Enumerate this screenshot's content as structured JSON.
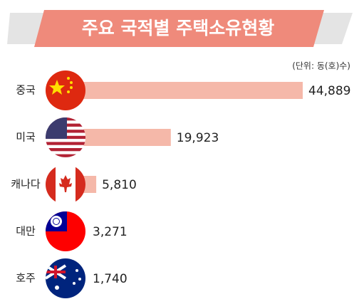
{
  "chart_data": {
    "type": "bar",
    "orientation": "horizontal",
    "title": "주요 국적별 주택소유현황",
    "unit_note": "(단위: 동(호)수)",
    "categories": [
      "중국",
      "미국",
      "캐나다",
      "대만",
      "호주"
    ],
    "values": [
      44889,
      19923,
      5810,
      3271,
      1740
    ],
    "value_labels": [
      "44,889",
      "19,923",
      "5,810",
      "3,271",
      "1,740"
    ],
    "color": "#f5b8a9"
  }
}
